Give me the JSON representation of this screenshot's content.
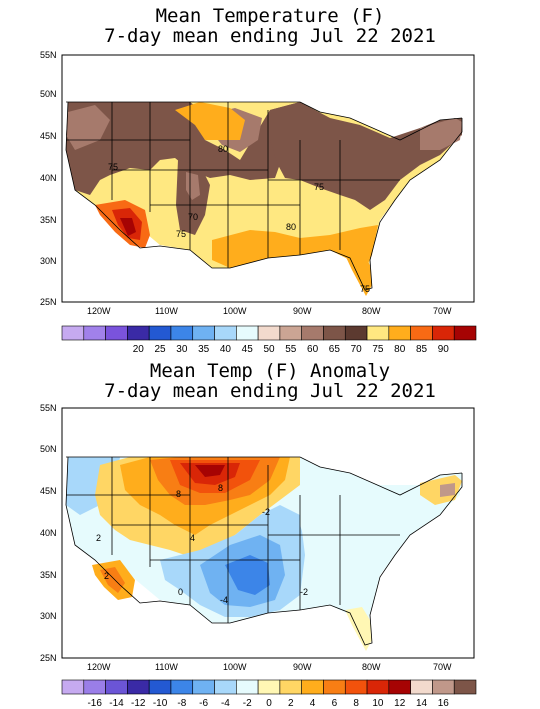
{
  "maps": [
    {
      "title_line1": "Mean Temperature (F)",
      "title_line2": "7-day mean ending Jul 22 2021",
      "lat_labels": [
        "55N",
        "50N",
        "45N",
        "40N",
        "35N",
        "30N",
        "25N"
      ],
      "lon_labels": [
        "120W",
        "110W",
        "100W",
        "90W",
        "80W",
        "70W"
      ],
      "contour_labels": [
        "75",
        "80",
        "70",
        "75",
        "75",
        "80",
        "75"
      ],
      "colorbar": {
        "colors": [
          "#c6aaf0",
          "#a181ea",
          "#7a53dc",
          "#3a2aa6",
          "#2359d2",
          "#3c85e8",
          "#6fb2f2",
          "#a8d8fa",
          "#e6fbfd",
          "#f2dacd",
          "#cba594",
          "#a67a6c",
          "#7d5548",
          "#5c3a30",
          "#ffe881",
          "#ffad1c",
          "#f86a14",
          "#d92607",
          "#a60303"
        ],
        "labels": [
          "20",
          "25",
          "30",
          "35",
          "40",
          "45",
          "50",
          "55",
          "60",
          "65",
          "70",
          "75",
          "80",
          "85",
          "90"
        ]
      }
    },
    {
      "title_line1": "Mean Temp (F) Anomaly",
      "title_line2": "7-day mean ending Jul 22 2021",
      "lat_labels": [
        "55N",
        "50N",
        "45N",
        "40N",
        "35N",
        "30N",
        "25N"
      ],
      "lon_labels": [
        "120W",
        "110W",
        "100W",
        "90W",
        "80W",
        "70W"
      ],
      "contour_labels": [
        "8",
        "8",
        "2",
        "4",
        "-2",
        "-4",
        "-2",
        "0",
        "2"
      ],
      "colorbar": {
        "colors": [
          "#c6aaf0",
          "#9a7ee8",
          "#6b55d6",
          "#3a2aa6",
          "#2359d2",
          "#3c85e8",
          "#6fb2f2",
          "#a8d8fa",
          "#e6fbfd",
          "#fff7b4",
          "#ffd664",
          "#ffad1c",
          "#f87e14",
          "#f2520c",
          "#d92607",
          "#a60303",
          "#f2dacd",
          "#c0988a",
          "#7d5548"
        ],
        "labels": [
          "-16",
          "-14",
          "-12",
          "-10",
          "-8",
          "-6",
          "-4",
          "-2",
          "0",
          "2",
          "4",
          "6",
          "8",
          "10",
          "12",
          "14",
          "16"
        ]
      }
    }
  ]
}
